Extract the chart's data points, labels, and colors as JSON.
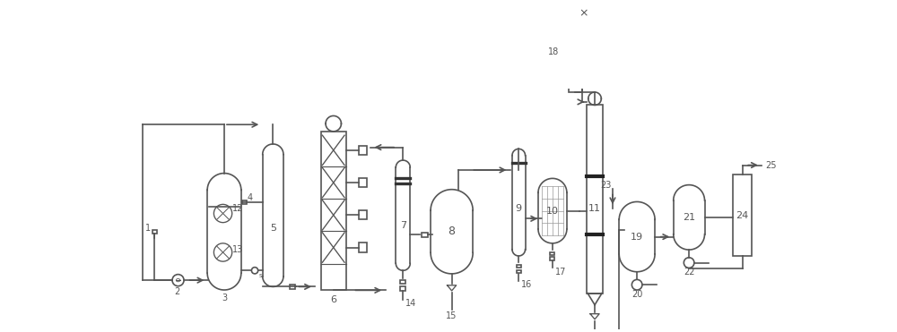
{
  "bg_color": "#ffffff",
  "lc": "#555555",
  "lw": 1.2,
  "fig_w": 10.0,
  "fig_h": 3.71
}
